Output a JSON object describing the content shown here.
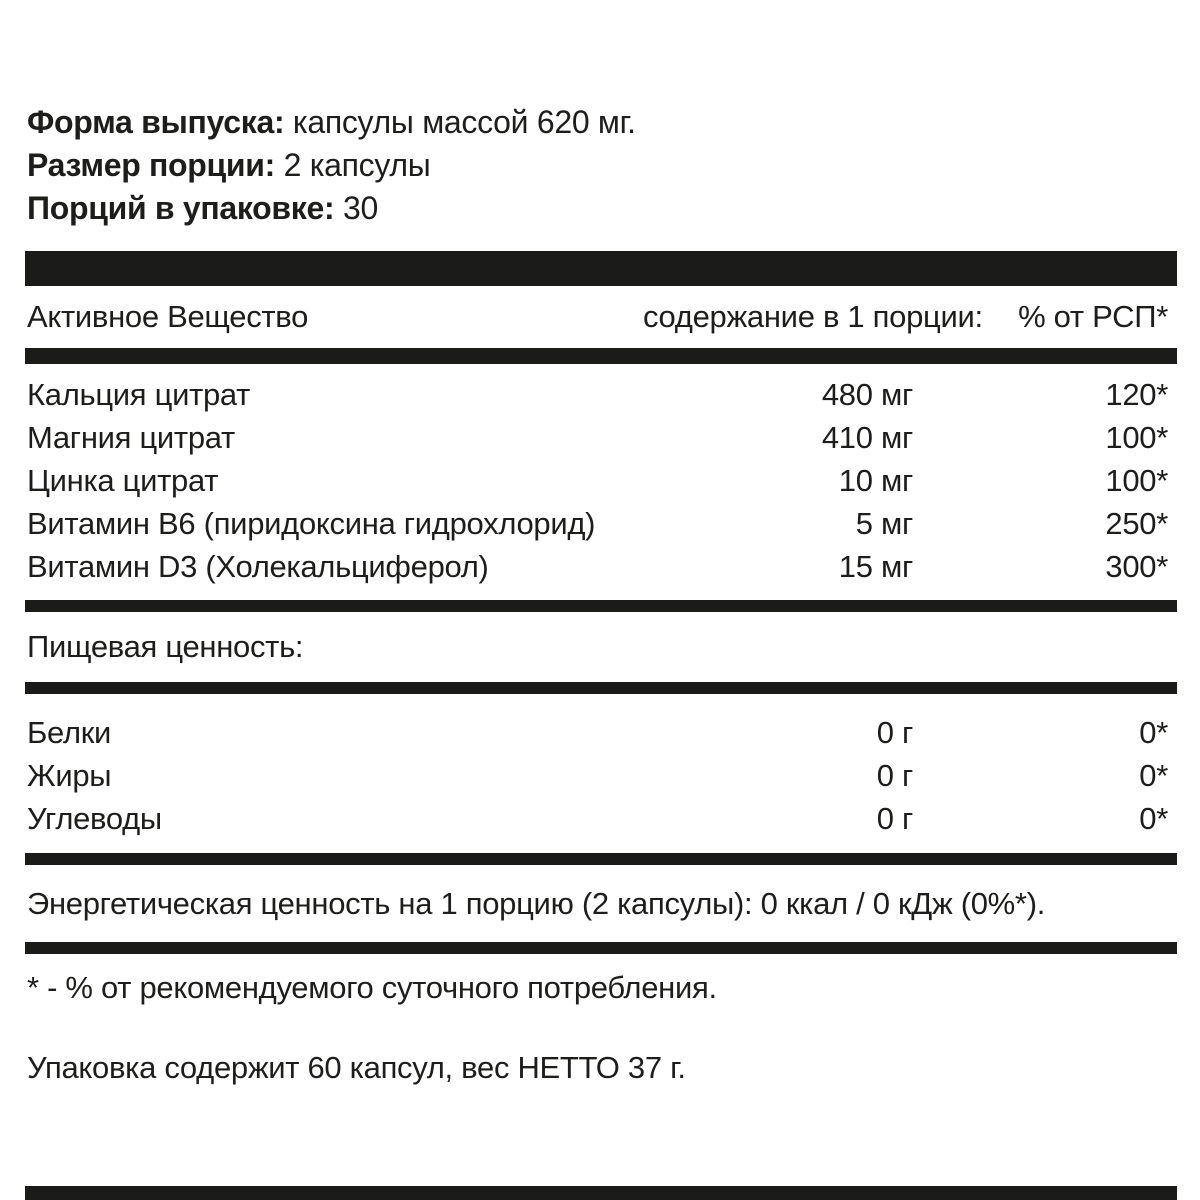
{
  "colors": {
    "ink": "#1d1d1b",
    "bar": "#1b1b19",
    "background": "#ffffff"
  },
  "intro": {
    "lines": [
      {
        "label": "Форма выпуска:",
        "value": "капсулы массой 620 мг."
      },
      {
        "label": "Размер порции:",
        "value": "2 капсулы"
      },
      {
        "label": "Порций в упаковке:",
        "value": "30"
      }
    ]
  },
  "active_table": {
    "header": {
      "name": "Активное Вещество",
      "amount": "содержание в 1 порции:",
      "percent": "% от РСП*"
    },
    "rows": [
      {
        "name": "Кальция цитрат",
        "amount": "480 мг",
        "percent": "120*"
      },
      {
        "name": "Магния цитрат",
        "amount": "410 мг",
        "percent": "100*"
      },
      {
        "name": "Цинка цитрат",
        "amount": "10 мг",
        "percent": "100*"
      },
      {
        "name": "Витамин B6 (пиридоксина гидрохлорид)",
        "amount": "5 мг",
        "percent": "250*"
      },
      {
        "name": "Витамин D3 (Холекальциферол)",
        "amount": "15 мг",
        "percent": "300*"
      }
    ]
  },
  "nutrition": {
    "title": "Пищевая ценность:",
    "rows": [
      {
        "name": "Белки",
        "amount": "0 г",
        "percent": "0*"
      },
      {
        "name": "Жиры",
        "amount": "0 г",
        "percent": "0*"
      },
      {
        "name": "Углеводы",
        "amount": "0 г",
        "percent": "0*"
      }
    ]
  },
  "energy_line": "Энергетическая ценность на 1 порцию (2 капсулы): 0 ккал / 0 кДж (0%*).",
  "footnote": "* - % от рекомендуемого суточного потребления.",
  "package_line": "Упаковка содержит 60 капсул, вес НЕТТО 37 г."
}
